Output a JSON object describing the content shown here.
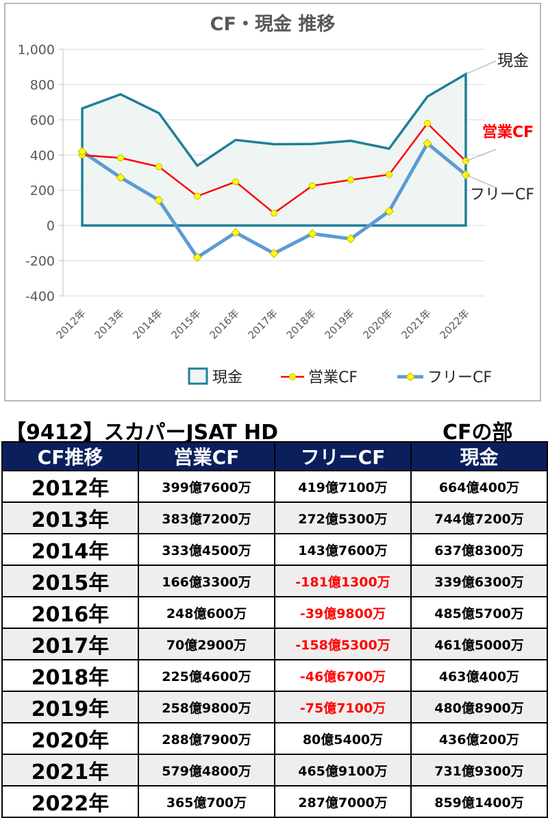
{
  "chart_data": {
    "type": "line",
    "title": "CF・現金 推移",
    "categories": [
      "2012年",
      "2013年",
      "2014年",
      "2015年",
      "2016年",
      "2017年",
      "2018年",
      "2019年",
      "2020年",
      "2021年",
      "2022年"
    ],
    "ylim": [
      -400,
      1000
    ],
    "yticks": [
      -400,
      -200,
      0,
      200,
      400,
      600,
      800,
      1000
    ],
    "ytick_labels": [
      "-400",
      "-200",
      "0",
      "200",
      "400",
      "600",
      "800",
      "1,000"
    ],
    "grid": true,
    "legend_position": "bottom",
    "series": [
      {
        "name": "現金",
        "kind": "area",
        "color": "#1f7f9a",
        "fill": "#eef5f3",
        "values": [
          664.04,
          744.72,
          637.83,
          339.63,
          485.57,
          461.5,
          463.04,
          480.89,
          436.02,
          731.93,
          859.14
        ]
      },
      {
        "name": "営業CF",
        "kind": "line",
        "color": "#ff0000",
        "marker": "circle",
        "marker_color": "#ffff00",
        "values": [
          399.76,
          383.72,
          333.45,
          166.33,
          248.06,
          70.29,
          225.46,
          258.98,
          288.79,
          579.48,
          365.07
        ]
      },
      {
        "name": "フリーCF",
        "kind": "line",
        "color": "#5b9bd5",
        "marker": "diamond",
        "marker_color": "#ffff00",
        "values": [
          419.71,
          272.53,
          143.76,
          -181.13,
          -39.98,
          -158.53,
          -46.67,
          -75.71,
          80.54,
          465.91,
          287.7
        ]
      }
    ],
    "annotations": [
      "現金",
      "営業CF",
      "フリーCF"
    ],
    "colors": {
      "axis_text": "#595959",
      "grid": "#d9d9d9",
      "title": "#595959"
    }
  },
  "header": {
    "company": "【9412】スカパーJSAT HD",
    "section": "CFの部"
  },
  "table": {
    "columns": [
      "CF推移",
      "営業CF",
      "フリーCF",
      "現金"
    ],
    "rows": [
      {
        "year": "2012年",
        "op": "399億7600万",
        "free": "419億7100万",
        "cash": "664億400万"
      },
      {
        "year": "2013年",
        "op": "383億7200万",
        "free": "272億5300万",
        "cash": "744億7200万"
      },
      {
        "year": "2014年",
        "op": "333億4500万",
        "free": "143億7600万",
        "cash": "637億8300万"
      },
      {
        "year": "2015年",
        "op": "166億3300万",
        "free": "-181億1300万",
        "cash": "339億6300万"
      },
      {
        "year": "2016年",
        "op": "248億600万",
        "free": "-39億9800万",
        "cash": "485億5700万"
      },
      {
        "year": "2017年",
        "op": "70億2900万",
        "free": "-158億5300万",
        "cash": "461億5000万"
      },
      {
        "year": "2018年",
        "op": "225億4600万",
        "free": "-46億6700万",
        "cash": "463億400万"
      },
      {
        "year": "2019年",
        "op": "258億9800万",
        "free": "-75億7100万",
        "cash": "480億8900万"
      },
      {
        "year": "2020年",
        "op": "288億7900万",
        "free": "80億5400万",
        "cash": "436億200万"
      },
      {
        "year": "2021年",
        "op": "579億4800万",
        "free": "465億9100万",
        "cash": "731億9300万"
      },
      {
        "year": "2022年",
        "op": "365億700万",
        "free": "287億7000万",
        "cash": "859億1400万"
      }
    ],
    "colors": {
      "header_bg": "#0b1f5c",
      "header_text": "#ffffff",
      "negative": "#ff0000",
      "alt_row": "#eeeeee"
    }
  }
}
